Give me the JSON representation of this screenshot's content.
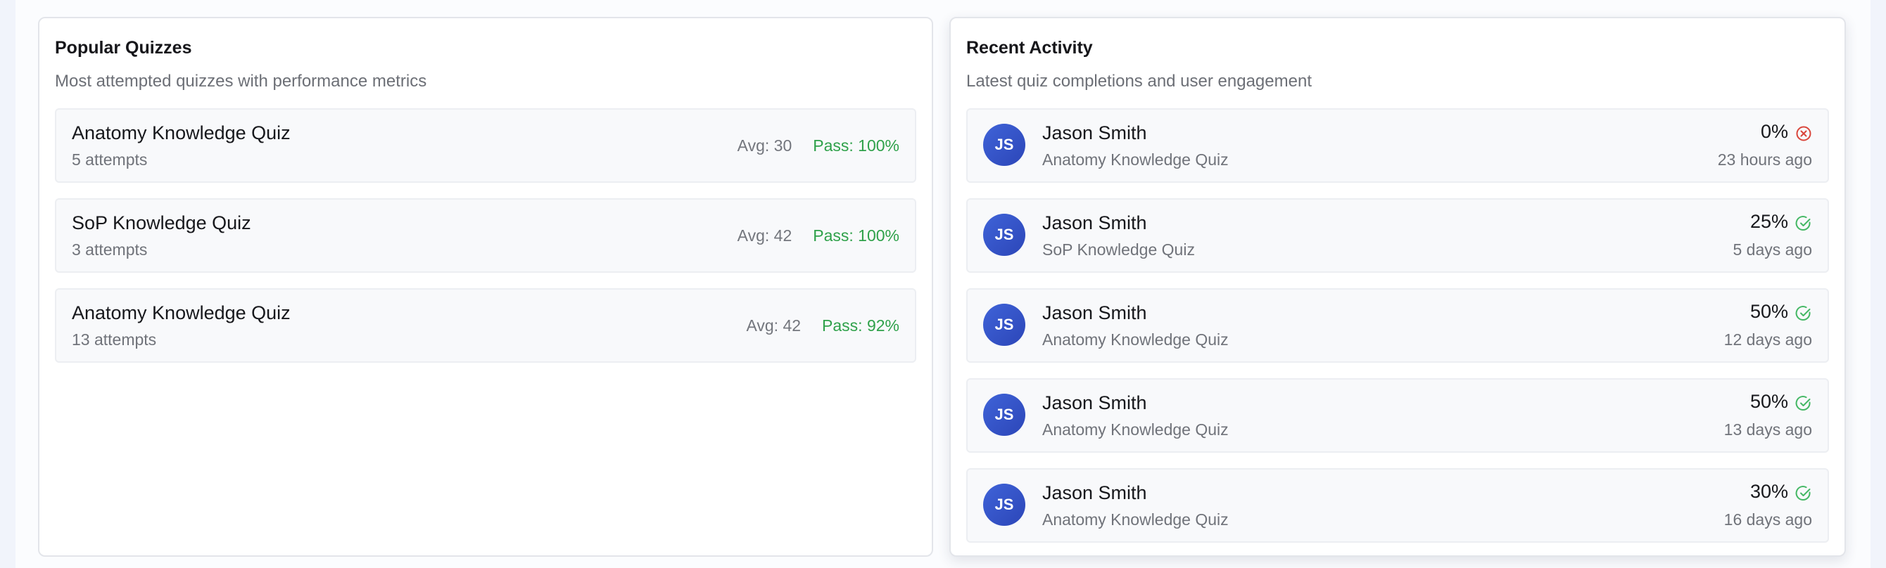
{
  "popular": {
    "title": "Popular Quizzes",
    "subtitle": "Most attempted quizzes with performance metrics",
    "items": [
      {
        "title": "Anatomy Knowledge Quiz",
        "attempts": "5 attempts",
        "avg": "Avg: 30",
        "pass": "Pass: 100%"
      },
      {
        "title": "SoP Knowledge Quiz",
        "attempts": "3 attempts",
        "avg": "Avg: 42",
        "pass": "Pass: 100%"
      },
      {
        "title": "Anatomy Knowledge Quiz",
        "attempts": "13 attempts",
        "avg": "Avg: 42",
        "pass": "Pass: 92%"
      }
    ]
  },
  "activity": {
    "title": "Recent Activity",
    "subtitle": "Latest quiz completions and user engagement",
    "items": [
      {
        "initials": "JS",
        "name": "Jason Smith",
        "quiz": "Anatomy Knowledge Quiz",
        "score": "0%",
        "status": "failed",
        "icon": "x-circle-icon",
        "time": "23 hours ago"
      },
      {
        "initials": "JS",
        "name": "Jason Smith",
        "quiz": "SoP Knowledge Quiz",
        "score": "25%",
        "status": "passed",
        "icon": "check-circle-icon",
        "time": "5 days ago"
      },
      {
        "initials": "JS",
        "name": "Jason Smith",
        "quiz": "Anatomy Knowledge Quiz",
        "score": "50%",
        "status": "passed",
        "icon": "check-circle-icon",
        "time": "12 days ago"
      },
      {
        "initials": "JS",
        "name": "Jason Smith",
        "quiz": "Anatomy Knowledge Quiz",
        "score": "50%",
        "status": "passed",
        "icon": "check-circle-icon",
        "time": "13 days ago"
      },
      {
        "initials": "JS",
        "name": "Jason Smith",
        "quiz": "Anatomy Knowledge Quiz",
        "score": "30%",
        "status": "passed",
        "icon": "check-circle-icon",
        "time": "16 days ago"
      }
    ]
  },
  "colors": {
    "pass_green": "#2fa14a",
    "fail_red": "#d9453b",
    "check_green": "#45b865",
    "avatar_blue": "#3454c9"
  }
}
